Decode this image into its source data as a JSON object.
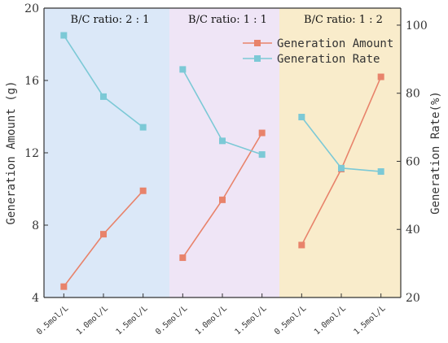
{
  "chart_data": {
    "type": "line",
    "categories": [
      "0.5mol/L",
      "1.0mol/L",
      "1.5mol/L",
      "0.5mol/L",
      "1.0mol/L",
      "1.5mol/L",
      "0.5mol/L",
      "1.0mol/L",
      "1.5mol/L"
    ],
    "groups": [
      {
        "label": "B/C ratio: 2 : 1",
        "color": "#dbe8f8"
      },
      {
        "label": "B/C ratio: 1 : 1",
        "color": "#efe5f6"
      },
      {
        "label": "B/C ratio: 1 : 2",
        "color": "#f9eccb"
      }
    ],
    "series": [
      {
        "name": "Generation Amount",
        "axis": "left",
        "color": "#e8836b",
        "segments": [
          [
            4.6,
            7.5,
            9.9
          ],
          [
            6.2,
            9.4,
            13.1
          ],
          [
            6.9,
            11.1,
            16.2
          ]
        ]
      },
      {
        "name": "Generation Rate",
        "axis": "right",
        "color": "#7cc9d6",
        "segments": [
          [
            97,
            79,
            70
          ],
          [
            87,
            66,
            62
          ],
          [
            73,
            58,
            57
          ]
        ]
      }
    ],
    "ylabel": "Generation Amount (g)",
    "y2label": "Generation Rate(%)",
    "ylim": [
      4,
      20
    ],
    "y2lim": [
      20,
      105
    ],
    "yticks": [
      "4",
      "8",
      "12",
      "16",
      "20"
    ],
    "y2ticks": [
      "20",
      "40",
      "60",
      "80",
      "100"
    ],
    "legend_position": "top-right"
  }
}
